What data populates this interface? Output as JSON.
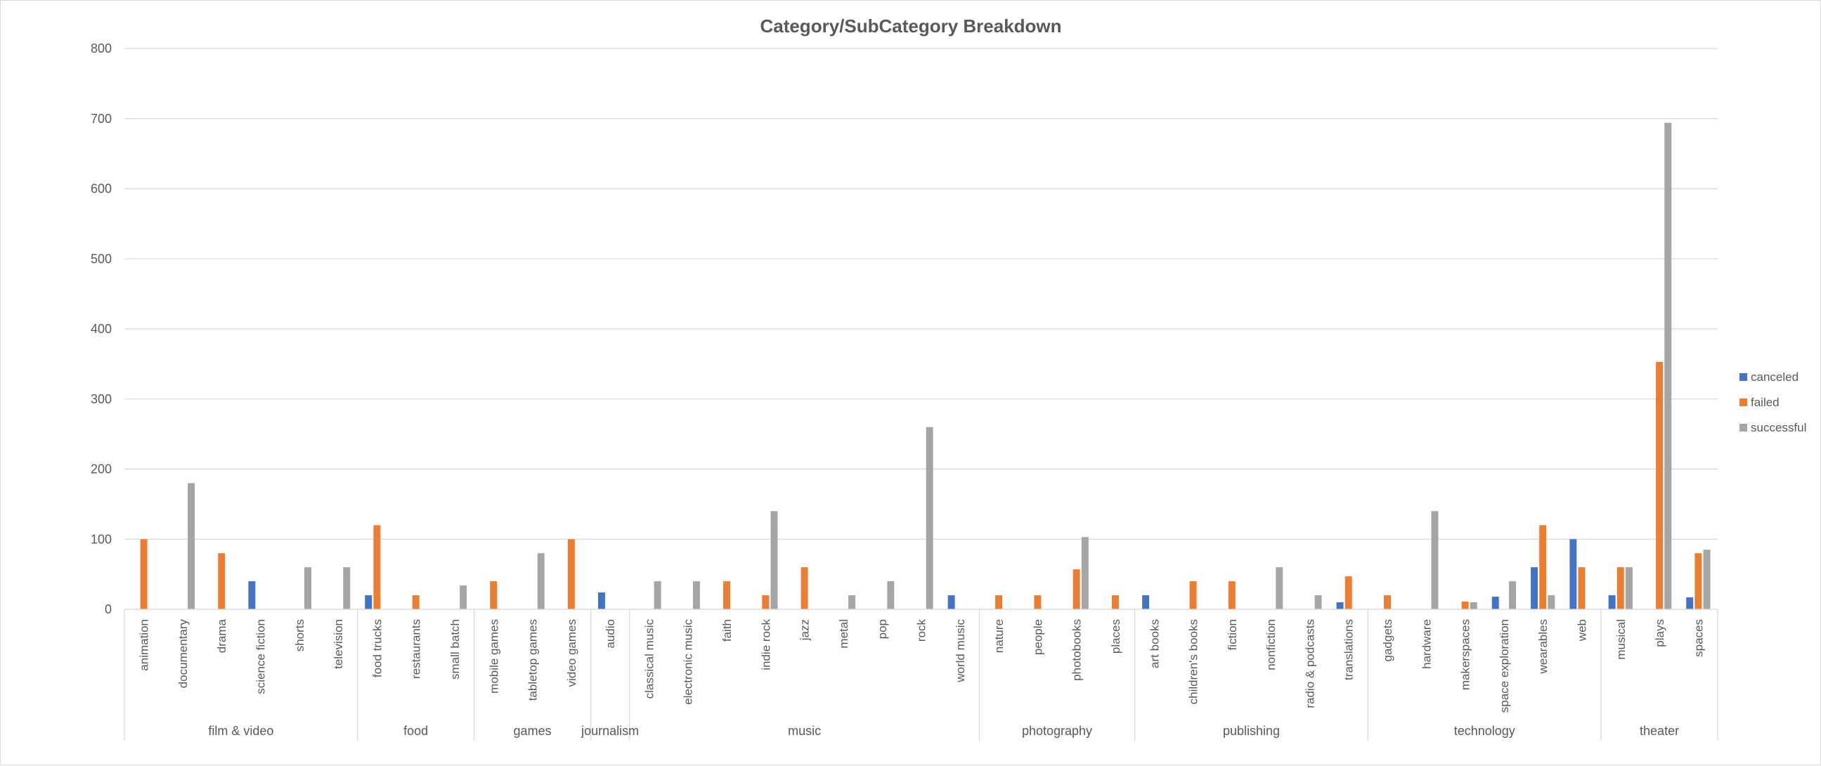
{
  "chart_data": {
    "type": "bar",
    "title": "Category/SubCategory Breakdown",
    "xlabel": "",
    "ylabel": "",
    "ylim": [
      0,
      800
    ],
    "yticks": [
      "0",
      "100",
      "200",
      "300",
      "400",
      "500",
      "600",
      "700",
      "800"
    ],
    "grid": true,
    "legend_position": "right",
    "groups": [
      {
        "name": "film & video",
        "subs": [
          "animation",
          "documentary",
          "drama",
          "science fiction",
          "shorts",
          "television"
        ]
      },
      {
        "name": "food",
        "subs": [
          "food trucks",
          "restaurants",
          "small batch"
        ]
      },
      {
        "name": "games",
        "subs": [
          "mobile games",
          "tabletop games",
          "video games"
        ]
      },
      {
        "name": "journalism",
        "subs": [
          "audio"
        ]
      },
      {
        "name": "music",
        "subs": [
          "classical music",
          "electronic music",
          "faith",
          "indie rock",
          "jazz",
          "metal",
          "pop",
          "rock",
          "world music"
        ]
      },
      {
        "name": "photography",
        "subs": [
          "nature",
          "people",
          "photobooks",
          "places"
        ]
      },
      {
        "name": "publishing",
        "subs": [
          "art books",
          "children's books",
          "fiction",
          "nonfiction",
          "radio & podcasts",
          "translations"
        ]
      },
      {
        "name": "technology",
        "subs": [
          "gadgets",
          "hardware",
          "makerspaces",
          "space exploration",
          "wearables",
          "web"
        ]
      },
      {
        "name": "theater",
        "subs": [
          "musical",
          "plays",
          "spaces"
        ]
      }
    ],
    "series": [
      {
        "name": "canceled",
        "color": "#4472c4",
        "values": [
          0,
          0,
          0,
          40,
          0,
          0,
          20,
          0,
          0,
          0,
          0,
          0,
          24,
          0,
          0,
          0,
          0,
          0,
          0,
          0,
          0,
          20,
          0,
          0,
          0,
          0,
          20,
          0,
          0,
          0,
          0,
          10,
          0,
          0,
          0,
          18,
          60,
          100,
          20,
          0,
          17
        ]
      },
      {
        "name": "failed",
        "color": "#ed7d31",
        "values": [
          100,
          0,
          80,
          0,
          0,
          0,
          120,
          20,
          0,
          40,
          0,
          100,
          0,
          0,
          0,
          40,
          20,
          60,
          0,
          0,
          0,
          0,
          20,
          20,
          57,
          20,
          0,
          40,
          40,
          0,
          0,
          47,
          20,
          0,
          11,
          0,
          120,
          60,
          60,
          353,
          80
        ]
      },
      {
        "name": "successful",
        "color": "#a5a5a5",
        "values": [
          0,
          180,
          0,
          0,
          60,
          60,
          0,
          0,
          34,
          0,
          80,
          0,
          0,
          40,
          40,
          0,
          140,
          0,
          20,
          40,
          260,
          0,
          0,
          0,
          103,
          0,
          0,
          0,
          0,
          60,
          20,
          0,
          0,
          140,
          10,
          40,
          20,
          0,
          60,
          694,
          85
        ]
      }
    ]
  }
}
